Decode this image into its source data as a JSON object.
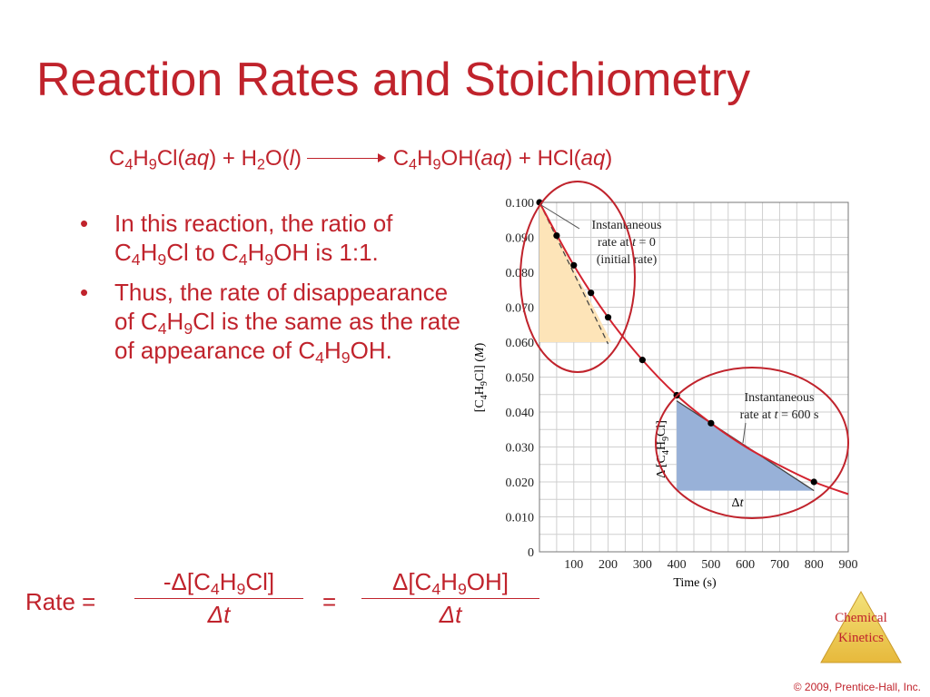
{
  "slide": {
    "title": "Reaction Rates and Stoichiometry",
    "equation": {
      "r1_c": "C",
      "r1_c_sub": "4",
      "r1_h": "H",
      "r1_h_sub": "9",
      "r1_rest": "Cl",
      "r1_state": "aq",
      "plus1": "+",
      "r2_h": "H",
      "r2_h_sub": "2",
      "r2_o": "O",
      "r2_state": "l",
      "p1_c": "C",
      "p1_c_sub": "4",
      "p1_h": "H",
      "p1_h_sub": "9",
      "p1_rest": "OH",
      "p1_state": "aq",
      "plus2": "+",
      "p2": "HCl",
      "p2_state": "aq"
    },
    "bullets": [
      {
        "pre": "In this reaction, the ratio of C",
        "s1": "4",
        "m1": "H",
        "s2": "9",
        "m2": "Cl to C",
        "s3": "4",
        "m3": "H",
        "s4": "9",
        "post": "OH is 1:1."
      },
      {
        "pre": "Thus, the rate of disappearance of C",
        "s1": "4",
        "m1": "H",
        "s2": "9",
        "post": "Cl is the same as the rate of appearance of C",
        "s3": "4",
        "m3": "H",
        "s4": "9",
        "end": "OH."
      }
    ],
    "rate_equation": {
      "label": "Rate =",
      "num1_pre": "-Δ[C",
      "num1_s1": "4",
      "num1_h": "H",
      "num1_s2": "9",
      "num1_post": "Cl]",
      "den1": "Δt",
      "equals": "=",
      "num2_pre": "Δ[C",
      "num2_s1": "4",
      "num2_h": "H",
      "num2_s2": "9",
      "num2_post": "OH]",
      "den2": "Δt"
    },
    "logo_text": [
      "Chemical",
      "Kinetics"
    ],
    "copyright": "© 2009, Prentice-Hall, Inc."
  },
  "chart_data": {
    "type": "line",
    "xlabel": "Time (s)",
    "ylabel": "[C4H9Cl] (M)",
    "xlim": [
      0,
      900
    ],
    "ylim": [
      0,
      0.1
    ],
    "x_ticks": [
      "100",
      "200",
      "300",
      "400",
      "500",
      "600",
      "700",
      "800",
      "900"
    ],
    "y_ticks": [
      "0",
      "0.010",
      "0.020",
      "0.030",
      "0.040",
      "0.050",
      "0.060",
      "0.070",
      "0.080",
      "0.090",
      "0.100"
    ],
    "points": [
      {
        "x": 0,
        "y": 0.1
      },
      {
        "x": 50,
        "y": 0.0905
      },
      {
        "x": 100,
        "y": 0.082
      },
      {
        "x": 150,
        "y": 0.0741
      },
      {
        "x": 200,
        "y": 0.0671
      },
      {
        "x": 300,
        "y": 0.0549
      },
      {
        "x": 400,
        "y": 0.0448
      },
      {
        "x": 500,
        "y": 0.0368
      },
      {
        "x": 800,
        "y": 0.02
      }
    ],
    "curve": [
      [
        0,
        0.1
      ],
      [
        100,
        0.082
      ],
      [
        200,
        0.0671
      ],
      [
        300,
        0.0549
      ],
      [
        400,
        0.0448
      ],
      [
        500,
        0.0368
      ],
      [
        600,
        0.0301
      ],
      [
        700,
        0.0247
      ],
      [
        800,
        0.02
      ],
      [
        900,
        0.0165
      ]
    ],
    "tangents": [
      {
        "label": "Instantaneous rate at t = 0 (initial rate)",
        "from": [
          0,
          0.1
        ],
        "to": [
          200,
          0.0595
        ]
      },
      {
        "label": "Instantaneous rate at t = 600 s",
        "from": [
          400,
          0.0432
        ],
        "to": [
          800,
          0.0175
        ]
      }
    ],
    "triangles": [
      {
        "label_dx": "",
        "label_dy": "",
        "x": [
          0,
          210
        ],
        "y": [
          0.06,
          0.1
        ]
      },
      {
        "label_dx": "Δt",
        "label_dy": "Δ [C4H9Cl]",
        "x": [
          400,
          800
        ],
        "y": [
          0.0175,
          0.0432
        ]
      }
    ],
    "annotations": {
      "t0_line1": "Instantaneous",
      "t0_line2_pre": "rate at ",
      "t0_line2_var": "t",
      "t0_line2_post": " = 0",
      "t0_line3": "(initial rate)",
      "t600_line1": "Instantaneous",
      "t600_line2_pre": "rate at ",
      "t600_line2_var": "t",
      "t600_line2_post": " = 600 s",
      "dt": "Δt",
      "dconc": "Δ [C4H9Cl]"
    },
    "colors": {
      "curve": "#d3232f",
      "points": "#000000",
      "grid": "#cfcfcf",
      "triangle_initial": "#fde4b8",
      "triangle_600": "#98b1d8",
      "highlight_ellipse": "#c0232c"
    }
  }
}
